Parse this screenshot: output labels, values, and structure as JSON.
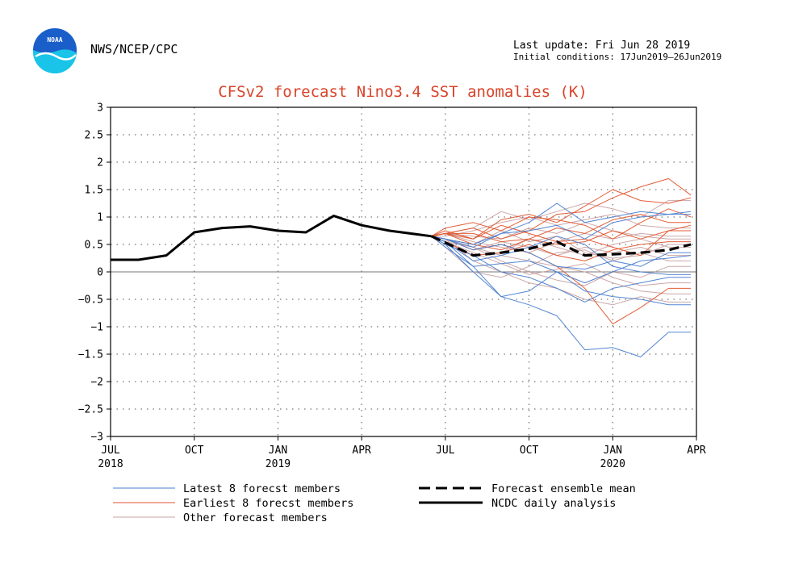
{
  "header": {
    "org": "NWS/NCEP/CPC",
    "logo_text": "NOAA",
    "last_update": "Last update: Fri Jun 28 2019",
    "initial_conditions": "Initial conditions: 17Jun2019—26Jun2019"
  },
  "colors": {
    "latest": "#4a7fd0",
    "earliest": "#e0552c",
    "other": "#c9a3a3",
    "analysis": "#000000",
    "mean": "#000000",
    "title": "#d9442a",
    "logo_blue": "#1a5fc9",
    "logo_cyan": "#19c4e8"
  },
  "chart_data": {
    "type": "line",
    "title": "CFSv2 forecast Nino3.4 SST anomalies (K)",
    "xlabel": "",
    "ylabel": "",
    "ylim": [
      -3,
      3
    ],
    "xlim": [
      0,
      21
    ],
    "x_unit": "months since JUL 2018",
    "yticks": [
      3,
      2.5,
      2,
      1.5,
      1,
      0.5,
      0,
      -0.5,
      -1,
      -1.5,
      -2,
      -2.5,
      -3
    ],
    "ytick_labels": [
      "3",
      "2.5",
      "2",
      "1.5",
      "1",
      "0.5",
      "0",
      "−0.5",
      "−1",
      "−1.5",
      "−2",
      "−2.5",
      "−3"
    ],
    "xticks": [
      {
        "x": 0,
        "label": "JUL",
        "year": "2018"
      },
      {
        "x": 3,
        "label": "OCT",
        "year": ""
      },
      {
        "x": 6,
        "label": "JAN",
        "year": "2019"
      },
      {
        "x": 9,
        "label": "APR",
        "year": ""
      },
      {
        "x": 12,
        "label": "JUL",
        "year": ""
      },
      {
        "x": 15,
        "label": "OCT",
        "year": ""
      },
      {
        "x": 18,
        "label": "JAN",
        "year": "2020"
      },
      {
        "x": 21,
        "label": "APR",
        "year": ""
      }
    ],
    "grid": true,
    "zero_line": true,
    "legend_position": "bottom",
    "legend": [
      {
        "key": "latest",
        "label": "Latest 8 forecst members",
        "style": "thin"
      },
      {
        "key": "earliest",
        "label": "Earliest 8 forecst members",
        "style": "thin"
      },
      {
        "key": "other",
        "label": "Other forecast members",
        "style": "thin"
      },
      {
        "key": "mean",
        "label": "Forecast ensemble mean",
        "style": "dashed"
      },
      {
        "key": "analysis",
        "label": "NCDC daily analysis",
        "style": "solid"
      }
    ],
    "analysis": {
      "x": [
        0,
        1,
        2,
        3,
        4,
        5,
        6,
        7,
        8,
        9,
        10,
        11.5
      ],
      "y": [
        0.22,
        0.22,
        0.3,
        0.72,
        0.8,
        0.83,
        0.75,
        0.72,
        1.02,
        0.85,
        0.75,
        0.65
      ]
    },
    "ensemble_mean": {
      "x": [
        11.5,
        13,
        14,
        15,
        16,
        17,
        18,
        19,
        20,
        20.8
      ],
      "y": [
        0.65,
        0.3,
        0.35,
        0.42,
        0.55,
        0.3,
        0.32,
        0.35,
        0.4,
        0.5
      ]
    },
    "members_x": [
      11.5,
      12,
      13,
      14,
      15,
      16,
      17,
      18,
      19,
      20,
      20.8
    ],
    "latest_members": [
      [
        0.65,
        0.5,
        0.0,
        -0.45,
        -0.6,
        -0.8,
        -1.42,
        -1.38,
        -1.55,
        -1.1,
        -1.1
      ],
      [
        0.65,
        0.55,
        0.1,
        -0.45,
        -0.35,
        0.0,
        -0.35,
        -0.45,
        -0.5,
        -0.6,
        -0.6
      ],
      [
        0.65,
        0.6,
        0.45,
        0.7,
        0.9,
        1.25,
        0.9,
        1.0,
        1.1,
        1.05,
        1.1
      ],
      [
        0.65,
        0.55,
        0.2,
        0.3,
        0.45,
        0.65,
        0.5,
        0.1,
        0.0,
        -0.05,
        -0.05
      ],
      [
        0.65,
        0.45,
        0.1,
        0.15,
        0.2,
        0.0,
        -0.2,
        0.0,
        0.2,
        0.25,
        0.3
      ],
      [
        0.65,
        0.6,
        0.5,
        0.7,
        0.75,
        0.85,
        0.6,
        0.9,
        1.0,
        1.05,
        1.05
      ],
      [
        0.65,
        0.5,
        0.3,
        0.0,
        -0.1,
        -0.3,
        -0.55,
        -0.3,
        -0.2,
        -0.1,
        -0.1
      ],
      [
        0.65,
        0.6,
        0.4,
        0.5,
        0.35,
        0.1,
        0.05,
        0.2,
        0.1,
        0.35,
        0.35
      ]
    ],
    "earliest_members": [
      [
        0.65,
        0.7,
        0.8,
        0.6,
        0.75,
        1.05,
        1.1,
        1.35,
        1.55,
        1.7,
        1.4
      ],
      [
        0.65,
        0.75,
        0.6,
        0.95,
        1.05,
        0.9,
        1.2,
        1.5,
        1.3,
        1.25,
        1.35
      ],
      [
        0.65,
        0.7,
        0.7,
        0.55,
        0.6,
        0.8,
        0.7,
        0.95,
        1.05,
        0.9,
        0.9
      ],
      [
        0.65,
        0.6,
        0.4,
        0.5,
        0.35,
        0.1,
        -0.3,
        -0.95,
        -0.65,
        -0.3,
        -0.3
      ],
      [
        0.65,
        0.7,
        0.5,
        0.4,
        0.6,
        0.5,
        0.55,
        0.75,
        0.6,
        0.75,
        0.85
      ],
      [
        0.65,
        0.8,
        0.9,
        0.75,
        1.0,
        0.95,
        0.85,
        0.6,
        0.9,
        1.15,
        1.0
      ],
      [
        0.65,
        0.55,
        0.3,
        0.35,
        0.5,
        0.3,
        0.2,
        0.4,
        0.5,
        0.55,
        0.55
      ],
      [
        0.65,
        0.7,
        0.6,
        0.85,
        0.7,
        0.55,
        0.6,
        0.45,
        0.3,
        0.75,
        0.75
      ]
    ],
    "other_members": [
      [
        0.65,
        0.6,
        0.2,
        0.0,
        -0.2,
        -0.3,
        -0.5,
        -0.6,
        -0.45,
        -0.55,
        -0.55
      ],
      [
        0.65,
        0.55,
        0.45,
        0.3,
        0.2,
        0.1,
        0.0,
        -0.2,
        -0.35,
        -0.4,
        -0.4
      ],
      [
        0.65,
        0.7,
        0.8,
        1.1,
        0.95,
        1.1,
        1.25,
        1.15,
        1.0,
        1.3,
        1.3
      ],
      [
        0.65,
        0.5,
        0.3,
        0.35,
        0.6,
        0.45,
        0.3,
        0.5,
        0.6,
        0.45,
        0.45
      ],
      [
        0.65,
        0.6,
        0.45,
        0.2,
        0.0,
        -0.15,
        -0.25,
        0.0,
        -0.1,
        0.1,
        0.1
      ],
      [
        0.65,
        0.7,
        0.65,
        0.6,
        0.8,
        0.7,
        0.9,
        0.75,
        0.65,
        0.6,
        0.6
      ],
      [
        0.65,
        0.45,
        0.0,
        -0.1,
        0.1,
        0.35,
        0.4,
        0.2,
        0.35,
        0.2,
        0.2
      ],
      [
        0.65,
        0.6,
        0.5,
        0.75,
        0.55,
        0.65,
        0.35,
        0.25,
        0.3,
        0.5,
        0.5
      ],
      [
        0.65,
        0.65,
        0.75,
        0.9,
        1.0,
        0.85,
        0.95,
        1.05,
        0.85,
        0.8,
        0.8
      ],
      [
        0.65,
        0.55,
        0.35,
        0.15,
        -0.05,
        0.05,
        0.15,
        -0.1,
        -0.25,
        -0.2,
        -0.2
      ],
      [
        0.65,
        0.7,
        0.55,
        0.45,
        0.35,
        0.55,
        0.7,
        0.6,
        0.7,
        0.65,
        0.65
      ],
      [
        0.65,
        0.6,
        0.4,
        0.55,
        0.45,
        0.3,
        0.45,
        0.35,
        0.45,
        0.3,
        0.3
      ]
    ]
  }
}
